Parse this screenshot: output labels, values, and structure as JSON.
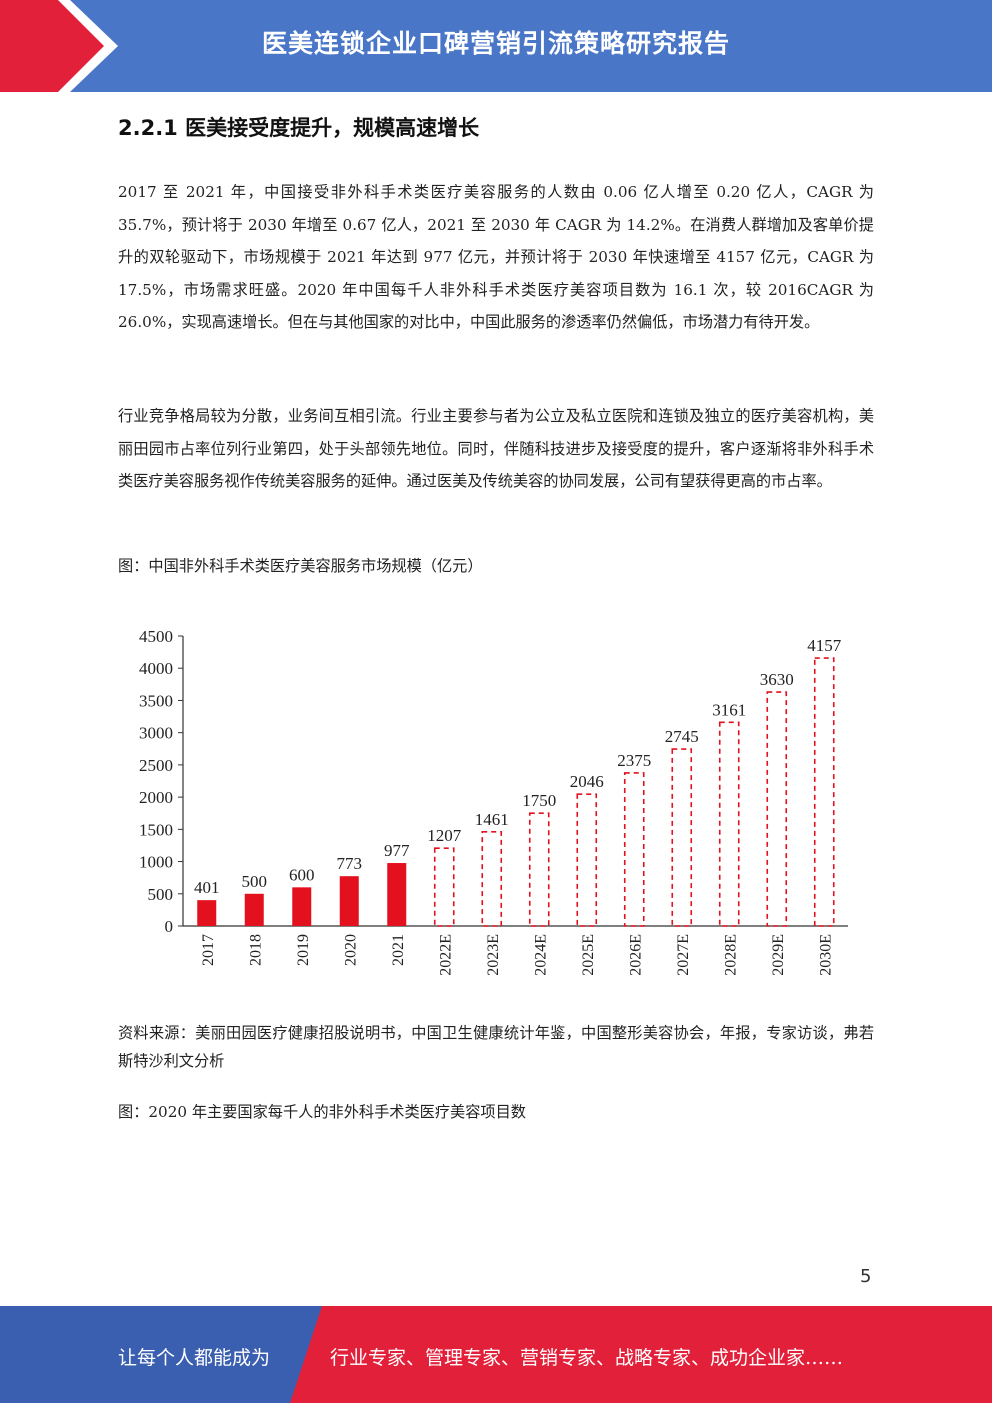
{
  "header": {
    "title": "医美连锁企业口碑营销引流策略研究报告",
    "colors": {
      "blue": "#4a76c8",
      "red": "#e3203a"
    }
  },
  "section": {
    "title": "2.2.1 医美接受度提升，规模高速增长"
  },
  "paragraphs": [
    "2017 至 2021 年，中国接受非外科手术类医疗美容服务的人数由 0.06 亿人增至 0.20 亿人，CAGR 为 35.7%，预计将于 2030 年增至 0.67 亿人，2021 至 2030 年 CAGR 为 14.2%。在消费人群增加及客单价提升的双轮驱动下，市场规模于 2021 年达到 977 亿元，并预计将于 2030 年快速增至 4157 亿元，CAGR 为 17.5%，市场需求旺盛。2020 年中国每千人非外科手术类医疗美容项目数为 16.1 次，较 2016CAGR 为 26.0%，实现高速增长。但在与其他国家的对比中，中国此服务的渗透率仍然偏低，市场潜力有待开发。",
    "行业竞争格局较为分散，业务间互相引流。行业主要参与者为公立及私立医院和连锁及独立的医疗美容机构，美丽田园市占率位列行业第四，处于头部领先地位。同时，伴随科技进步及接受度的提升，客户逐渐将非外科手术类医疗美容服务视作传统美容服务的延伸。通过医美及传统美容的协同发展，公司有望获得更高的市占率。"
  ],
  "captions": {
    "chart1": "图：中国非外科手术类医疗美容服务市场规模（亿元）",
    "chart2": "图：2020 年主要国家每千人的非外科手术类医疗美容项目数"
  },
  "chart_data": {
    "type": "bar",
    "categories": [
      "2017",
      "2018",
      "2019",
      "2020",
      "2021",
      "2022E",
      "2023E",
      "2024E",
      "2025E",
      "2026E",
      "2027E",
      "2028E",
      "2029E",
      "2030E"
    ],
    "values": [
      401,
      500,
      600,
      773,
      977,
      1207,
      1461,
      1750,
      2046,
      2375,
      2745,
      3161,
      3630,
      4157
    ],
    "forecast": [
      false,
      false,
      false,
      false,
      false,
      true,
      true,
      true,
      true,
      true,
      true,
      true,
      true,
      true
    ],
    "ylim": [
      0,
      4500
    ],
    "yticks": [
      0,
      500,
      1000,
      1500,
      2000,
      2500,
      3000,
      3500,
      4000,
      4500
    ],
    "grid": false,
    "bar_color": "#e3101e",
    "forecast_style": "red dashed outline"
  },
  "source": "资料来源：美丽田园医疗健康招股说明书，中国卫生健康统计年鉴，中国整形美容协会，年报，专家访谈，弗若斯特沙利文分析",
  "page_number": "5",
  "footer": {
    "left_text": "让每个人都能成为",
    "right_text": "行业专家、管理专家、营销专家、战略专家、成功企业家……"
  }
}
